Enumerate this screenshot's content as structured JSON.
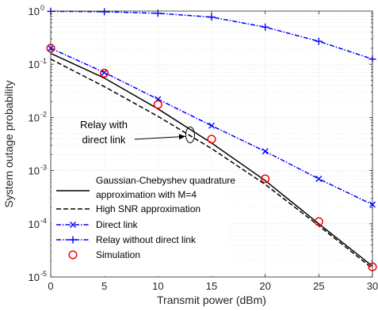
{
  "chart_data": {
    "type": "line",
    "title": "",
    "xlabel": "Transmit power (dBm)",
    "ylabel": "System outage probability",
    "xlim": [
      0,
      30
    ],
    "ylim": [
      1e-05,
      1
    ],
    "yscale": "log",
    "grid": true,
    "legend_placement": "bottom-left",
    "x_ticks": [
      0,
      5,
      10,
      15,
      20,
      25,
      30
    ],
    "y_ticks": [
      1,
      0.1,
      0.01,
      0.001,
      0.0001,
      1e-05
    ],
    "y_tick_labels": [
      {
        "base": "10",
        "exp": "0"
      },
      {
        "base": "10",
        "exp": "-1"
      },
      {
        "base": "10",
        "exp": "-2"
      },
      {
        "base": "10",
        "exp": "-3"
      },
      {
        "base": "10",
        "exp": "-4"
      },
      {
        "base": "10",
        "exp": "-5"
      }
    ],
    "series": [
      {
        "name": "Gaussian-Chebyshev quadrature approximation with M=4",
        "legend_lines": [
          "Gaussian-Chebyshev quadrature",
          "approximation with M=4"
        ],
        "style": "solid",
        "color": "#000000",
        "marker": "none",
        "x": [
          0,
          5,
          10,
          15,
          20,
          25,
          30
        ],
        "y": [
          0.16,
          0.055,
          0.0145,
          0.0033,
          0.00065,
          0.0001,
          1.6e-05
        ]
      },
      {
        "name": "High SNR approximation",
        "style": "dashed",
        "color": "#000000",
        "marker": "none",
        "x": [
          0,
          5,
          10,
          15,
          20,
          25,
          30
        ],
        "y": [
          0.125,
          0.038,
          0.0105,
          0.0026,
          0.00055,
          9.2e-05,
          1.45e-05
        ]
      },
      {
        "name": "Direct link",
        "style": "dashdot",
        "color": "#0000ff",
        "marker": "x",
        "x": [
          0,
          5,
          10,
          15,
          20,
          25,
          30
        ],
        "y": [
          0.2,
          0.07,
          0.022,
          0.007,
          0.0023,
          0.0007,
          0.00023
        ]
      },
      {
        "name": "Relay without direct link",
        "style": "dashdot",
        "color": "#0000ff",
        "marker": "+",
        "x": [
          0,
          5,
          10,
          15,
          20,
          25,
          30
        ],
        "y": [
          0.99,
          0.97,
          0.91,
          0.77,
          0.5,
          0.27,
          0.125
        ]
      },
      {
        "name": "Simulation",
        "style": "none",
        "color": "#ff0000",
        "marker": "o",
        "x": [
          0,
          5,
          10,
          15,
          20,
          25,
          30
        ],
        "y": [
          0.2,
          0.068,
          0.0175,
          0.0039,
          0.0007,
          0.00011,
          1.55e-05
        ]
      }
    ],
    "annotation": {
      "lines": [
        "Relay with",
        "direct link"
      ],
      "ellipse_at": {
        "x": 13,
        "y": 0.0047
      },
      "arrow_target": {
        "x": 13,
        "y": 0.0047
      }
    }
  }
}
